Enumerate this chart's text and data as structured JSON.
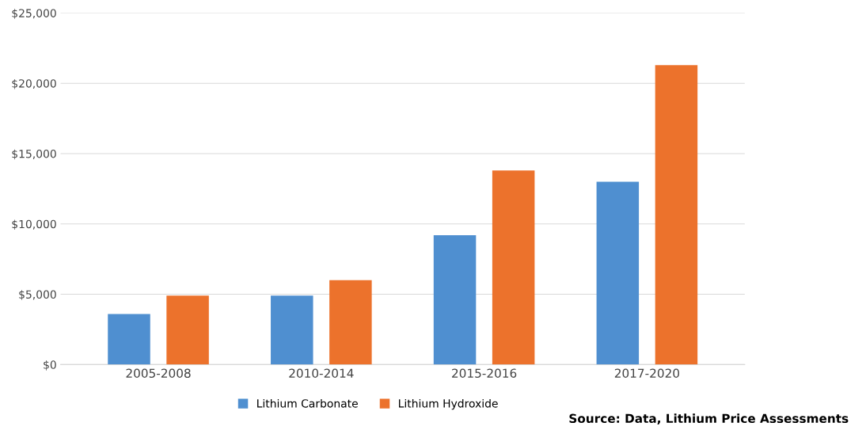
{
  "chart_data": {
    "type": "bar",
    "categories": [
      "2005-2008",
      "2010-2014",
      "2015-2016",
      "2017-2020"
    ],
    "series": [
      {
        "name": "Lithium Carbonate",
        "color": "#4f8fd0",
        "values": [
          3600,
          4900,
          9200,
          13000
        ]
      },
      {
        "name": "Lithium Hydroxide",
        "color": "#ec722c",
        "values": [
          4900,
          6000,
          13800,
          21300
        ]
      }
    ],
    "ylim": [
      0,
      25000
    ],
    "yticks": [
      {
        "value": 0,
        "label": "$0"
      },
      {
        "value": 5000,
        "label": "$5,000"
      },
      {
        "value": 10000,
        "label": "$10,000"
      },
      {
        "value": 15000,
        "label": "$15,000"
      },
      {
        "value": 20000,
        "label": "$20,000"
      },
      {
        "value": 25000,
        "label": "$25,000"
      }
    ],
    "grid": "y",
    "legend": "bottom",
    "annotations": [
      "Source: Data, Lithium Price Assessments"
    ]
  }
}
